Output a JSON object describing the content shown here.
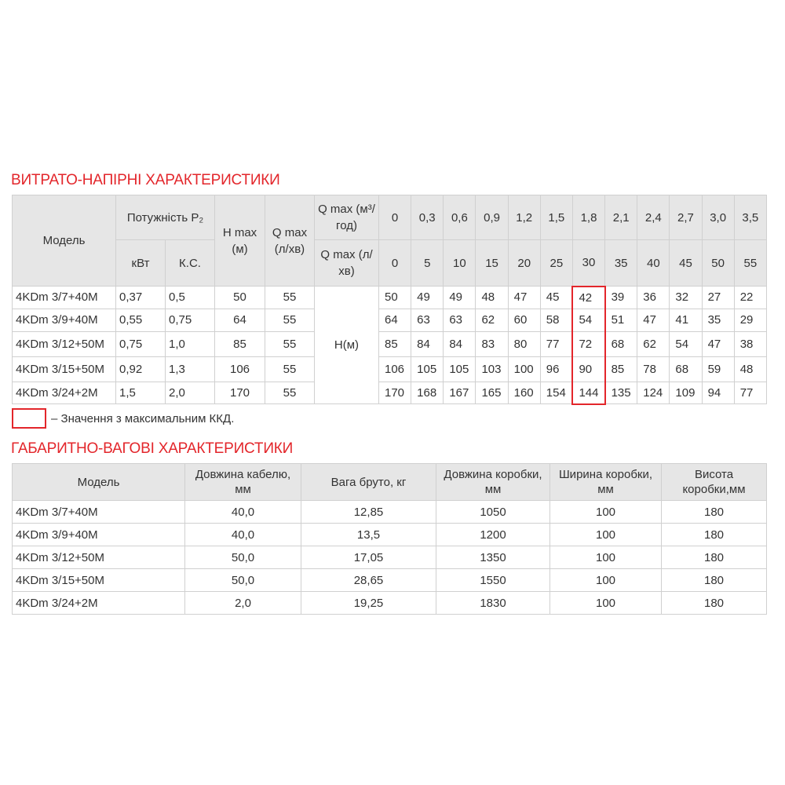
{
  "flow": {
    "title": "ВИТРАТО-НАПІРНІ ХАРАКТЕРИСТИКИ",
    "headers": {
      "model": "Модель",
      "power": "Потужність P₂",
      "kw": "кВт",
      "hp": "К.С.",
      "hmax": "H max (м)",
      "qmax": "Q max (л/хв)",
      "q_m3": "Q max (м³/год)",
      "q_lmin": "Q max (л/хв)",
      "h_label": "H(м)"
    },
    "q_m3": [
      "0",
      "0,3",
      "0,6",
      "0,9",
      "1,2",
      "1,5",
      "1,8",
      "2,1",
      "2,4",
      "2,7",
      "3,0",
      "3,5"
    ],
    "q_lmin": [
      "0",
      "5",
      "10",
      "15",
      "20",
      "25",
      "30",
      "35",
      "40",
      "45",
      "50",
      "55"
    ],
    "rows": [
      {
        "model": "4KDm 3/7+40M",
        "kw": "0,37",
        "hp": "0,5",
        "hmax": "50",
        "qmax": "55",
        "h": [
          "50",
          "49",
          "49",
          "48",
          "47",
          "45",
          "42",
          "39",
          "36",
          "32",
          "27",
          "22"
        ]
      },
      {
        "model": "4KDm 3/9+40M",
        "kw": "0,55",
        "hp": "0,75",
        "hmax": "64",
        "qmax": "55",
        "h": [
          "64",
          "63",
          "63",
          "62",
          "60",
          "58",
          "54",
          "51",
          "47",
          "41",
          "35",
          "29"
        ]
      },
      {
        "model": "4KDm 3/12+50M",
        "kw": "0,75",
        "hp": "1,0",
        "hmax": "85",
        "qmax": "55",
        "h": [
          "85",
          "84",
          "84",
          "83",
          "80",
          "77",
          "72",
          "68",
          "62",
          "54",
          "47",
          "38"
        ]
      },
      {
        "model": "4KDm 3/15+50M",
        "kw": "0,92",
        "hp": "1,3",
        "hmax": "106",
        "qmax": "55",
        "h": [
          "106",
          "105",
          "105",
          "103",
          "100",
          "96",
          "90",
          "85",
          "78",
          "68",
          "59",
          "48"
        ]
      },
      {
        "model": "4KDm 3/24+2M",
        "kw": "1,5",
        "hp": "2,0",
        "hmax": "170",
        "qmax": "55",
        "h": [
          "170",
          "168",
          "167",
          "165",
          "160",
          "154",
          "144",
          "135",
          "124",
          "109",
          "94",
          "77"
        ]
      }
    ],
    "highlight_column": "1,8",
    "highlight_color": "#e3262b",
    "legend": "– Значення з максимальним ККД."
  },
  "dims": {
    "title": "ГАБАРИТНО-ВАГОВІ ХАРАКТЕРИСТИКИ",
    "headers": [
      "Модель",
      "Довжина кабелю, мм",
      "Вага бруто, кг",
      "Довжина коробки, мм",
      "Ширина коробки, мм",
      "Висота коробки,мм"
    ],
    "rows": [
      [
        "4KDm 3/7+40M",
        "40,0",
        "12,85",
        "1050",
        "100",
        "180"
      ],
      [
        "4KDm 3/9+40M",
        "40,0",
        "13,5",
        "1200",
        "100",
        "180"
      ],
      [
        "4KDm 3/12+50M",
        "50,0",
        "17,05",
        "1350",
        "100",
        "180"
      ],
      [
        "4KDm 3/15+50M",
        "50,0",
        "28,65",
        "1550",
        "100",
        "180"
      ],
      [
        "4KDm 3/24+2M",
        "2,0",
        "19,25",
        "1830",
        "100",
        "180"
      ]
    ]
  }
}
